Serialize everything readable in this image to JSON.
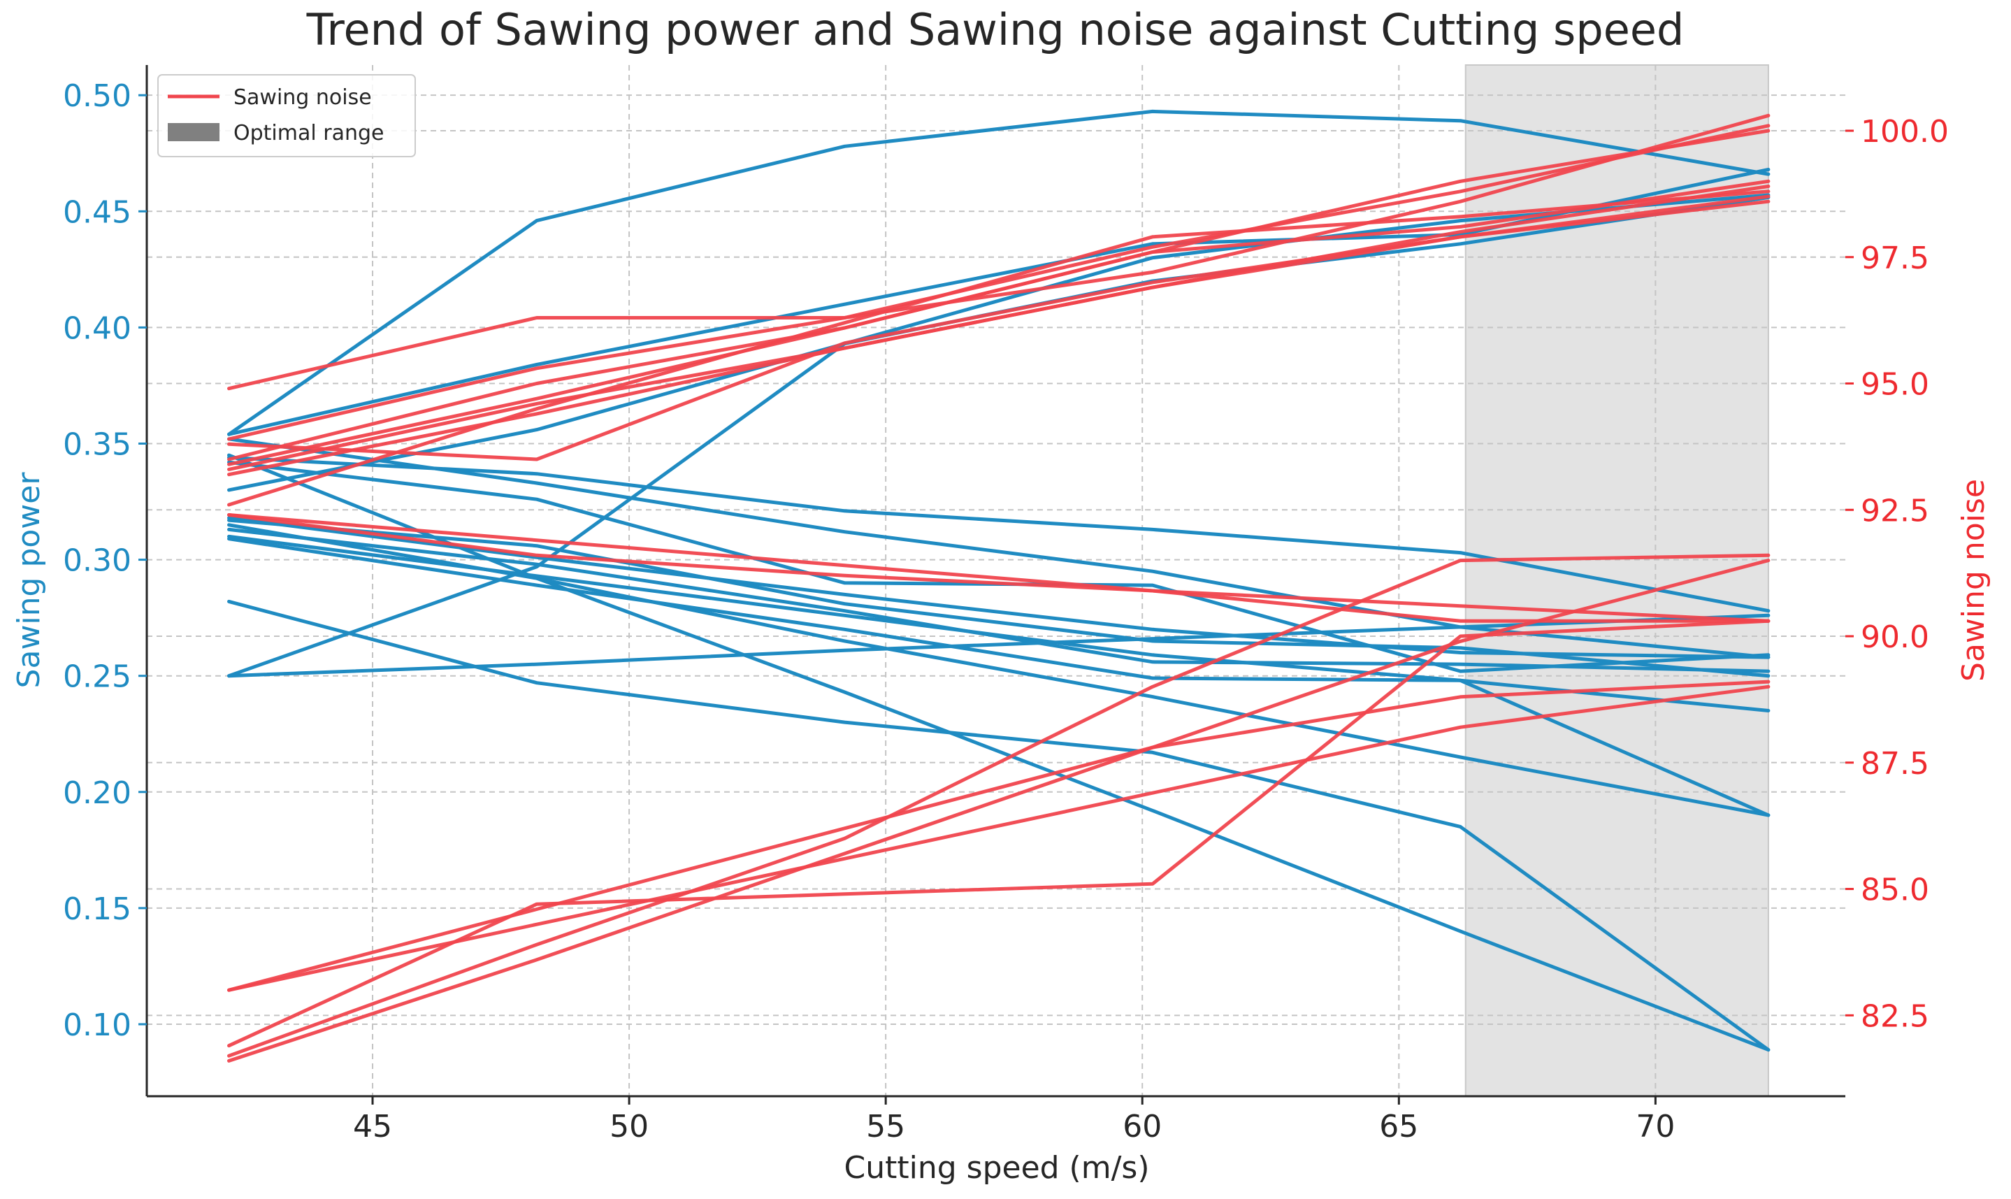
{
  "chart_data": {
    "type": "line",
    "title": "Trend of Sawing power and Sawing noise against Cutting speed",
    "xlabel": "Cutting speed (m/s)",
    "ylabel_left": "Sawing power",
    "ylabel_right": "Sawing noise",
    "xlim": [
      40.6,
      73.7
    ],
    "ylim_left": [
      0.069,
      0.513
    ],
    "ylim_right": [
      80.9,
      101.3
    ],
    "xticks": [
      45,
      50,
      55,
      60,
      65,
      70
    ],
    "yticks_left": [
      0.1,
      0.15,
      0.2,
      0.25,
      0.3,
      0.35,
      0.4,
      0.45,
      0.5
    ],
    "yticks_right": [
      82.5,
      85.0,
      87.5,
      90.0,
      92.5,
      95.0,
      97.5,
      100.0
    ],
    "grid": true,
    "optimal_range": [
      66.3,
      72.2
    ],
    "legend": {
      "position": "top-left",
      "entries": [
        {
          "label": "Sawing noise",
          "kind": "line",
          "color": "#f0454d"
        },
        {
          "label": "Optimal range",
          "kind": "patch",
          "color": "#808080"
        }
      ]
    },
    "colors": {
      "power": "#1f8bc2",
      "noise": "#f0454d",
      "power_axis": "#1f8bc2",
      "noise_axis": "#ee2a2f",
      "span": "#e3e3e3"
    },
    "x": [
      42.2,
      48.2,
      54.2,
      60.2,
      66.2,
      72.2
    ],
    "power_series": [
      {
        "name": "power-1",
        "values": [
          0.354,
          0.446,
          0.478,
          0.493,
          0.489,
          0.466
        ]
      },
      {
        "name": "power-2",
        "values": [
          0.354,
          0.384,
          0.41,
          0.436,
          0.44,
          0.468
        ]
      },
      {
        "name": "power-3",
        "values": [
          0.33,
          0.356,
          0.393,
          0.43,
          0.446,
          0.457
        ]
      },
      {
        "name": "power-4",
        "values": [
          0.25,
          0.297,
          0.393,
          0.42,
          0.436,
          0.456
        ]
      },
      {
        "name": "power-5",
        "values": [
          0.344,
          0.337,
          0.321,
          0.313,
          0.303,
          0.278
        ]
      },
      {
        "name": "power-6",
        "values": [
          0.342,
          0.326,
          0.29,
          0.289,
          0.252,
          0.259
        ]
      },
      {
        "name": "power-7",
        "values": [
          0.352,
          0.333,
          0.312,
          0.295,
          0.271,
          0.258
        ]
      },
      {
        "name": "power-8",
        "values": [
          0.318,
          0.301,
          0.285,
          0.27,
          0.26,
          0.258
        ]
      },
      {
        "name": "power-9",
        "values": [
          0.317,
          0.306,
          0.281,
          0.265,
          0.262,
          0.25
        ]
      },
      {
        "name": "power-10",
        "values": [
          0.313,
          0.298,
          0.278,
          0.256,
          0.255,
          0.252
        ]
      },
      {
        "name": "power-11",
        "values": [
          0.309,
          0.289,
          0.27,
          0.249,
          0.248,
          0.19
        ]
      },
      {
        "name": "power-12",
        "values": [
          0.25,
          0.255,
          0.261,
          0.266,
          0.271,
          0.276
        ]
      },
      {
        "name": "power-13",
        "values": [
          0.282,
          0.247,
          0.23,
          0.217,
          0.185,
          0.089
        ]
      },
      {
        "name": "power-14",
        "values": [
          0.345,
          0.292,
          0.243,
          0.192,
          0.14,
          0.089
        ]
      },
      {
        "name": "power-15",
        "values": [
          0.315,
          0.292,
          0.265,
          0.241,
          0.215,
          0.19
        ]
      },
      {
        "name": "power-16",
        "values": [
          0.31,
          0.293,
          0.276,
          0.259,
          0.248,
          0.235
        ]
      }
    ],
    "noise_series": [
      {
        "name": "noise-1",
        "values": [
          94.9,
          96.3,
          96.3,
          97.2,
          98.6,
          100.3
        ]
      },
      {
        "name": "noise-2",
        "values": [
          93.9,
          95.3,
          96.3,
          97.7,
          98.8,
          100.1
        ]
      },
      {
        "name": "noise-3",
        "values": [
          93.4,
          94.7,
          96.1,
          97.6,
          99.0,
          100.0
        ]
      },
      {
        "name": "noise-4",
        "values": [
          93.5,
          95.0,
          96.1,
          97.6,
          98.1,
          99.0
        ]
      },
      {
        "name": "noise-5",
        "values": [
          92.6,
          94.5,
          96.2,
          97.9,
          98.3,
          98.8
        ]
      },
      {
        "name": "noise-6",
        "values": [
          93.2,
          94.4,
          95.7,
          96.9,
          98.0,
          98.9
        ]
      },
      {
        "name": "noise-7",
        "values": [
          93.3,
          94.6,
          95.7,
          96.9,
          97.9,
          98.7
        ]
      },
      {
        "name": "noise-8",
        "values": [
          93.8,
          93.5,
          95.8,
          97.0,
          97.9,
          98.6
        ]
      },
      {
        "name": "noise-9",
        "values": [
          92.4,
          91.9,
          91.4,
          90.9,
          90.6,
          90.3
        ]
      },
      {
        "name": "noise-10",
        "values": [
          92.4,
          91.6,
          91.2,
          90.9,
          90.3,
          90.3
        ]
      },
      {
        "name": "noise-11",
        "values": [
          83.0,
          84.3,
          85.6,
          86.9,
          88.2,
          89.0
        ]
      },
      {
        "name": "noise-12",
        "values": [
          83.0,
          84.6,
          86.2,
          87.8,
          88.8,
          89.1
        ]
      },
      {
        "name": "noise-13",
        "values": [
          81.9,
          84.7,
          84.9,
          85.1,
          90.0,
          90.3
        ]
      },
      {
        "name": "noise-14",
        "values": [
          81.7,
          83.9,
          86.0,
          89.0,
          91.5,
          91.6
        ]
      },
      {
        "name": "noise-15",
        "values": [
          81.6,
          83.6,
          85.7,
          87.8,
          89.9,
          91.5
        ]
      }
    ]
  }
}
